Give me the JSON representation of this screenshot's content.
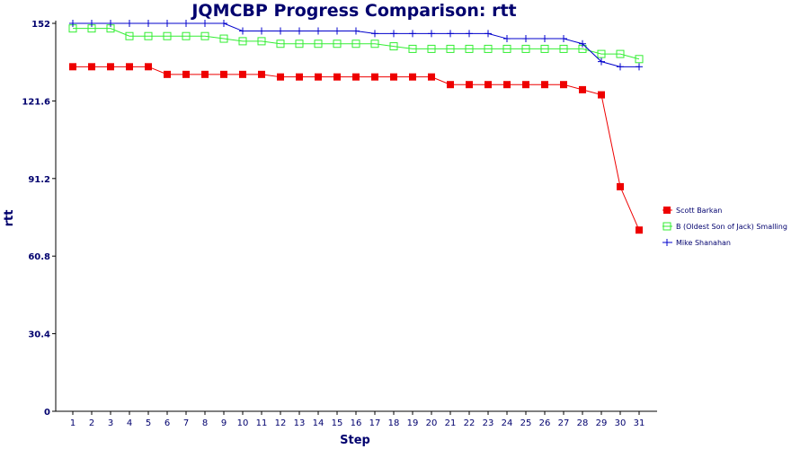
{
  "chart_data": {
    "type": "line",
    "title": "JQMCBP Progress Comparison: rtt",
    "xlabel": "Step",
    "ylabel": "rtt",
    "ylim": [
      0,
      152
    ],
    "yticks": [
      "0",
      "30.4",
      "60.8",
      "91.2",
      "121.6",
      "152"
    ],
    "x": [
      1,
      2,
      3,
      4,
      5,
      6,
      7,
      8,
      9,
      10,
      11,
      12,
      13,
      14,
      15,
      16,
      17,
      18,
      19,
      20,
      21,
      22,
      23,
      24,
      25,
      26,
      27,
      28,
      29,
      30,
      31
    ],
    "legend_position": "right",
    "grid": false,
    "series": [
      {
        "name": "Scott Barkan",
        "color": "#ee0000",
        "marker": "filled-square",
        "values": [
          135,
          135,
          135,
          135,
          135,
          132,
          132,
          132,
          132,
          132,
          132,
          131,
          131,
          131,
          131,
          131,
          131,
          131,
          131,
          131,
          128,
          128,
          128,
          128,
          128,
          128,
          128,
          126,
          124,
          88,
          71
        ]
      },
      {
        "name": "B (Oldest Son of Jack) Smalling",
        "color": "#33ee33",
        "marker": "open-square",
        "values": [
          150,
          150,
          150,
          147,
          147,
          147,
          147,
          147,
          146,
          145,
          145,
          144,
          144,
          144,
          144,
          144,
          144,
          143,
          142,
          142,
          142,
          142,
          142,
          142,
          142,
          142,
          142,
          142,
          140,
          140,
          138
        ]
      },
      {
        "name": "Mike Shanahan",
        "color": "#0000cc",
        "marker": "plus",
        "values": [
          152,
          152,
          152,
          152,
          152,
          152,
          152,
          152,
          152,
          149,
          149,
          149,
          149,
          149,
          149,
          149,
          148,
          148,
          148,
          148,
          148,
          148,
          148,
          146,
          146,
          146,
          146,
          144,
          137,
          135,
          135
        ]
      }
    ]
  }
}
